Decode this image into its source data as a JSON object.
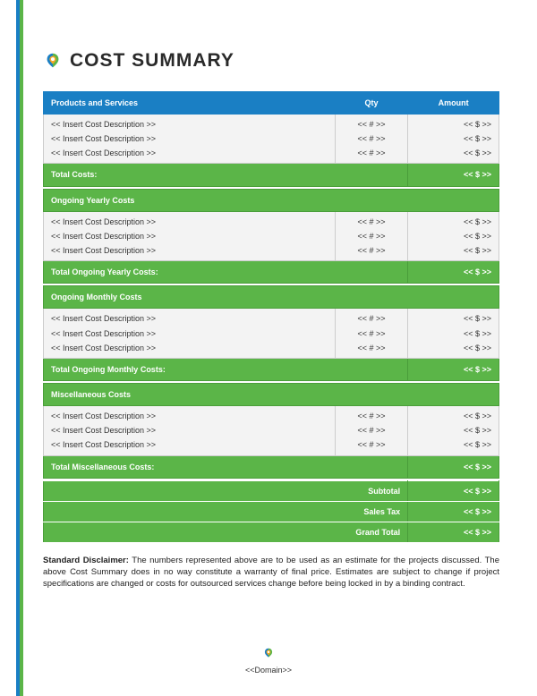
{
  "colors": {
    "header_bg": "#1a7fc4",
    "section_bg": "#5bb548",
    "row_bg": "#f3f3f3",
    "border": "#cccccc",
    "text": "#2a2a2a",
    "stripe_blue": "#1a7fc4",
    "stripe_green": "#5bb548"
  },
  "title": "COST SUMMARY",
  "columns": {
    "desc": "Products and Services",
    "qty": "Qty",
    "amt": "Amount"
  },
  "placeholders": {
    "desc": "<< Insert Cost Description >>",
    "qty": "<< # >>",
    "amt": "<< $ >>"
  },
  "sections": [
    {
      "header": null,
      "total_label": "Total Costs:"
    },
    {
      "header": "Ongoing Yearly Costs",
      "total_label": "Total Ongoing Yearly Costs:"
    },
    {
      "header": "Ongoing Monthly Costs",
      "total_label": "Total Ongoing Monthly Costs:"
    },
    {
      "header": "Miscellaneous Costs",
      "total_label": "Total Miscellaneous Costs:"
    }
  ],
  "summary": {
    "subtotal": "Subtotal",
    "sales_tax": "Sales Tax",
    "grand_total": "Grand Total"
  },
  "disclaimer": {
    "lead": "Standard Disclaimer:",
    "body": "The numbers represented above are to be used as an estimate for the projects discussed. The above Cost Summary does in no way constitute a warranty of final price.  Estimates are subject to change if project specifications are changed or costs for outsourced services change before being locked in by a binding contract."
  },
  "footer": "<<Domain>>"
}
